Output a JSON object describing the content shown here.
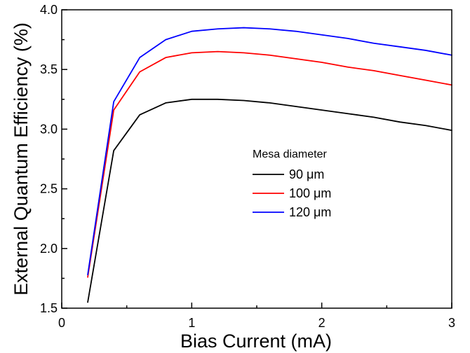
{
  "chart_data": {
    "type": "line",
    "xlabel": "Bias Current (mA)",
    "ylabel": "External Quantum Efficiency (%)",
    "xlim": [
      0,
      3
    ],
    "ylim": [
      1.5,
      4.0
    ],
    "x_ticks": [
      0,
      1,
      2,
      3
    ],
    "x_tick_labels": [
      "0",
      "1",
      "2",
      "3"
    ],
    "y_ticks": [
      1.5,
      2.0,
      2.5,
      3.0,
      3.5,
      4.0
    ],
    "y_tick_labels": [
      "1.5",
      "2.0",
      "2.5",
      "3.0",
      "3.5",
      "4.0"
    ],
    "grid": false,
    "legend": {
      "title": "Mesa diameter",
      "placement": "center-right"
    },
    "series": [
      {
        "name": "90 μm",
        "color": "#000000",
        "x": [
          0.2,
          0.4,
          0.6,
          0.8,
          1.0,
          1.2,
          1.4,
          1.6,
          1.8,
          2.0,
          2.2,
          2.4,
          2.6,
          2.8,
          3.0
        ],
        "y": [
          1.55,
          2.82,
          3.12,
          3.22,
          3.25,
          3.25,
          3.24,
          3.22,
          3.19,
          3.16,
          3.13,
          3.1,
          3.06,
          3.03,
          2.99
        ]
      },
      {
        "name": "100 μm",
        "color": "#ff0000",
        "x": [
          0.2,
          0.4,
          0.6,
          0.8,
          1.0,
          1.2,
          1.4,
          1.6,
          1.8,
          2.0,
          2.2,
          2.4,
          2.6,
          2.8,
          3.0
        ],
        "y": [
          1.76,
          3.16,
          3.48,
          3.6,
          3.64,
          3.65,
          3.64,
          3.62,
          3.59,
          3.56,
          3.52,
          3.49,
          3.45,
          3.41,
          3.37
        ]
      },
      {
        "name": "120 μm",
        "color": "#0000ff",
        "x": [
          0.2,
          0.4,
          0.6,
          0.8,
          1.0,
          1.2,
          1.4,
          1.6,
          1.8,
          2.0,
          2.2,
          2.4,
          2.6,
          2.8,
          3.0
        ],
        "y": [
          1.78,
          3.23,
          3.6,
          3.75,
          3.82,
          3.84,
          3.85,
          3.84,
          3.82,
          3.79,
          3.76,
          3.72,
          3.69,
          3.66,
          3.62
        ]
      }
    ]
  }
}
